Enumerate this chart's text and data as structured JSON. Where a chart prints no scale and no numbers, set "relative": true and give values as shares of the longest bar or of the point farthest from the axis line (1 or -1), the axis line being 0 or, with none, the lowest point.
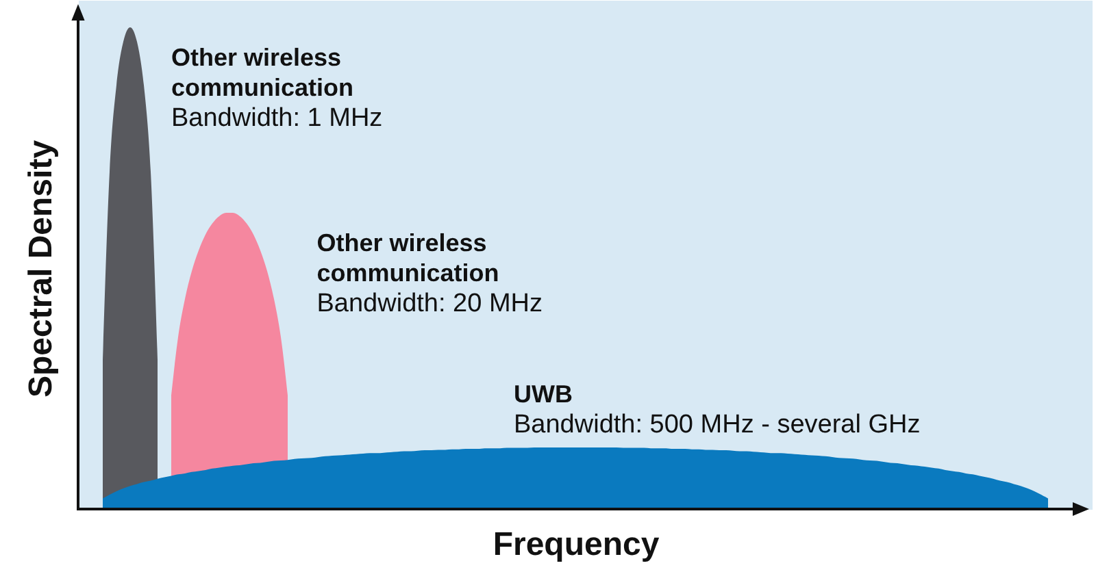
{
  "chart_data": {
    "type": "area",
    "relative": true,
    "xlabel": "Frequency",
    "ylabel": "Spectral Density",
    "categories": [
      null,
      null,
      null,
      null,
      null,
      null,
      null,
      null,
      null,
      null,
      null,
      null,
      null,
      null,
      null,
      null,
      null,
      null,
      null,
      null,
      null,
      null,
      null,
      null,
      null,
      null,
      null,
      null,
      null,
      null,
      null,
      null,
      null,
      null,
      null,
      null,
      null,
      null,
      null,
      null,
      null,
      null,
      null,
      null,
      null,
      null,
      null,
      null,
      null,
      null,
      null,
      null,
      null,
      null,
      null,
      null,
      null,
      null,
      null,
      null,
      null,
      null,
      null,
      null,
      null,
      null,
      null,
      null,
      null,
      null,
      null,
      null,
      null,
      null,
      null,
      null,
      null,
      null,
      null,
      null,
      null,
      null,
      null,
      null,
      null,
      null,
      null,
      null,
      null,
      null,
      null,
      null,
      null,
      null,
      null,
      null,
      null,
      null,
      null,
      null,
      null,
      null,
      null,
      null,
      null,
      null,
      null,
      null,
      null,
      null,
      null,
      null,
      null,
      null,
      null,
      null,
      null,
      null,
      null,
      null,
      null,
      null,
      null,
      null,
      null,
      null,
      null,
      null,
      null,
      null,
      null,
      null,
      null,
      null,
      null,
      null,
      null,
      null,
      null,
      null,
      null
    ],
    "annotations": [
      "Bandwidth: 1 MHz",
      "Bandwidth: 20 MHz",
      "Bandwidth: 500 MHz - several GHz"
    ],
    "series": [
      {
        "name": "Other wireless communication",
        "color": "#58595e",
        "values": [
          null,
          0.31,
          0.7,
          0.88,
          0.97,
          1,
          0.97,
          0.88,
          0.7,
          0.31,
          null,
          null,
          null,
          null,
          null,
          null,
          null,
          null,
          null,
          null,
          null,
          null,
          null,
          null,
          null,
          null,
          null,
          null,
          null,
          null,
          null,
          null,
          null,
          null,
          null,
          null,
          null,
          null,
          null,
          null,
          null,
          null,
          null,
          null,
          null,
          null,
          null,
          null,
          null,
          null,
          null,
          null,
          null,
          null,
          null,
          null,
          null,
          null,
          null,
          null,
          null,
          null,
          null,
          null,
          null,
          null,
          null,
          null,
          null,
          null,
          null,
          null,
          null,
          null,
          null,
          null,
          null,
          null,
          null,
          null,
          null,
          null,
          null,
          null,
          null,
          null,
          null,
          null,
          null,
          null,
          null,
          null,
          null,
          null,
          null,
          null,
          null,
          null,
          null,
          null,
          null,
          null,
          null,
          null,
          null,
          null,
          null,
          null,
          null,
          null,
          null,
          null,
          null,
          null,
          null,
          null,
          null,
          null,
          null,
          null,
          null,
          null,
          null,
          null,
          null,
          null,
          null,
          null,
          null,
          null,
          null,
          null,
          null,
          null,
          null,
          null,
          null,
          null,
          null,
          null,
          null
        ]
      },
      {
        "name": "Other wireless communication",
        "color": "#f5879f",
        "values": [
          null,
          null,
          null,
          null,
          null,
          null,
          null,
          null,
          null,
          null,
          null,
          0.236,
          0.357,
          0.436,
          0.494,
          0.537,
          0.57,
          0.593,
          0.608,
          0.615,
          0.615,
          0.608,
          0.593,
          0.57,
          0.537,
          0.494,
          0.436,
          0.357,
          0.236,
          null,
          null,
          null,
          null,
          null,
          null,
          null,
          null,
          null,
          null,
          null,
          null,
          null,
          null,
          null,
          null,
          null,
          null,
          null,
          null,
          null,
          null,
          null,
          null,
          null,
          null,
          null,
          null,
          null,
          null,
          null,
          null,
          null,
          null,
          null,
          null,
          null,
          null,
          null,
          null,
          null,
          null,
          null,
          null,
          null,
          null,
          null,
          null,
          null,
          null,
          null,
          null,
          null,
          null,
          null,
          null,
          null,
          null,
          null,
          null,
          null,
          null,
          null,
          null,
          null,
          null,
          null,
          null,
          null,
          null,
          null,
          null,
          null,
          null,
          null,
          null,
          null,
          null,
          null,
          null,
          null,
          null,
          null,
          null,
          null,
          null,
          null,
          null,
          null,
          null,
          null,
          null,
          null,
          null,
          null,
          null,
          null,
          null,
          null,
          null,
          null,
          null,
          null,
          null,
          null,
          null,
          null,
          null,
          null,
          null,
          null,
          null
        ]
      },
      {
        "name": "UWB",
        "color": "#0a7abf",
        "values": [
          null,
          0.022,
          0.03,
          0.037,
          0.043,
          0.048,
          0.052,
          0.056,
          0.059,
          0.063,
          0.066,
          0.069,
          0.072,
          0.074,
          0.077,
          0.079,
          0.081,
          0.084,
          0.086,
          0.088,
          0.09,
          0.091,
          0.093,
          0.095,
          0.096,
          0.098,
          0.1,
          0.101,
          0.102,
          0.104,
          0.105,
          0.106,
          0.107,
          0.109,
          0.11,
          0.111,
          0.112,
          0.113,
          0.114,
          0.115,
          0.116,
          0.116,
          0.117,
          0.118,
          0.119,
          0.12,
          0.12,
          0.121,
          0.122,
          0.122,
          0.123,
          0.123,
          0.124,
          0.124,
          0.125,
          0.125,
          0.125,
          0.126,
          0.126,
          0.126,
          0.127,
          0.127,
          0.127,
          0.127,
          0.128,
          0.128,
          0.128,
          0.128,
          0.128,
          0.128,
          0.128,
          0.128,
          0.128,
          0.128,
          0.128,
          0.128,
          0.128,
          0.127,
          0.127,
          0.127,
          0.127,
          0.126,
          0.126,
          0.126,
          0.125,
          0.125,
          0.125,
          0.124,
          0.124,
          0.123,
          0.123,
          0.122,
          0.122,
          0.121,
          0.12,
          0.12,
          0.119,
          0.118,
          0.117,
          0.116,
          0.116,
          0.115,
          0.114,
          0.113,
          0.112,
          0.111,
          0.11,
          0.109,
          0.107,
          0.106,
          0.105,
          0.104,
          0.102,
          0.101,
          0.1,
          0.098,
          0.096,
          0.095,
          0.093,
          0.091,
          0.09,
          0.088,
          0.086,
          0.084,
          0.081,
          0.079,
          0.077,
          0.074,
          0.072,
          0.069,
          0.066,
          0.063,
          0.059,
          0.056,
          0.052,
          0.048,
          0.043,
          0.037,
          0.03,
          0.022,
          null
        ]
      }
    ]
  }
}
